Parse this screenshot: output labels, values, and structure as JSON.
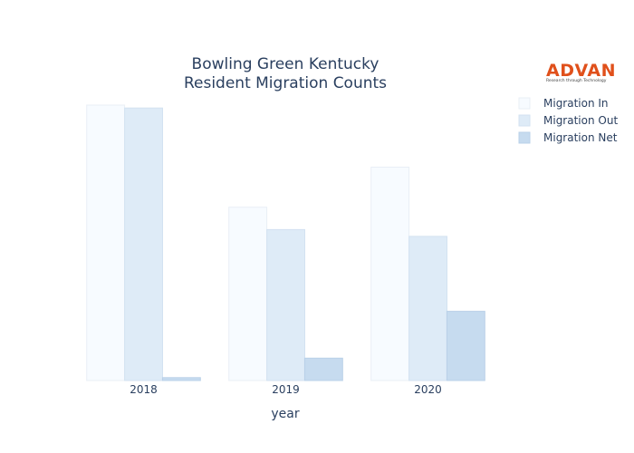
{
  "logo": {
    "brand": "ADVAN",
    "tagline": "Research through Technology",
    "color": "#e0501b"
  },
  "chart_data": {
    "type": "bar",
    "title_lines": [
      "Bowling Green Kentucky",
      "Resident Migration Counts"
    ],
    "xlabel": "year",
    "ylabel": "",
    "categories": [
      "2018",
      "2019",
      "2020"
    ],
    "series": [
      {
        "name": "Migration In",
        "values": [
          1500,
          944,
          1162
        ],
        "color": "#f7fbff",
        "stroke": "#e9eff6"
      },
      {
        "name": "Migration Out",
        "values": [
          1484,
          822,
          785
        ],
        "color": "#deebf7",
        "stroke": "#d3e2f1"
      },
      {
        "name": "Migration Net",
        "values": [
          16,
          122,
          377
        ],
        "color": "#c6dbef",
        "stroke": "#b9d0e8"
      }
    ],
    "ylim": [
      0,
      1500
    ],
    "grid": false,
    "y_tick_labels_visible": false,
    "legend_position": "top-right"
  }
}
